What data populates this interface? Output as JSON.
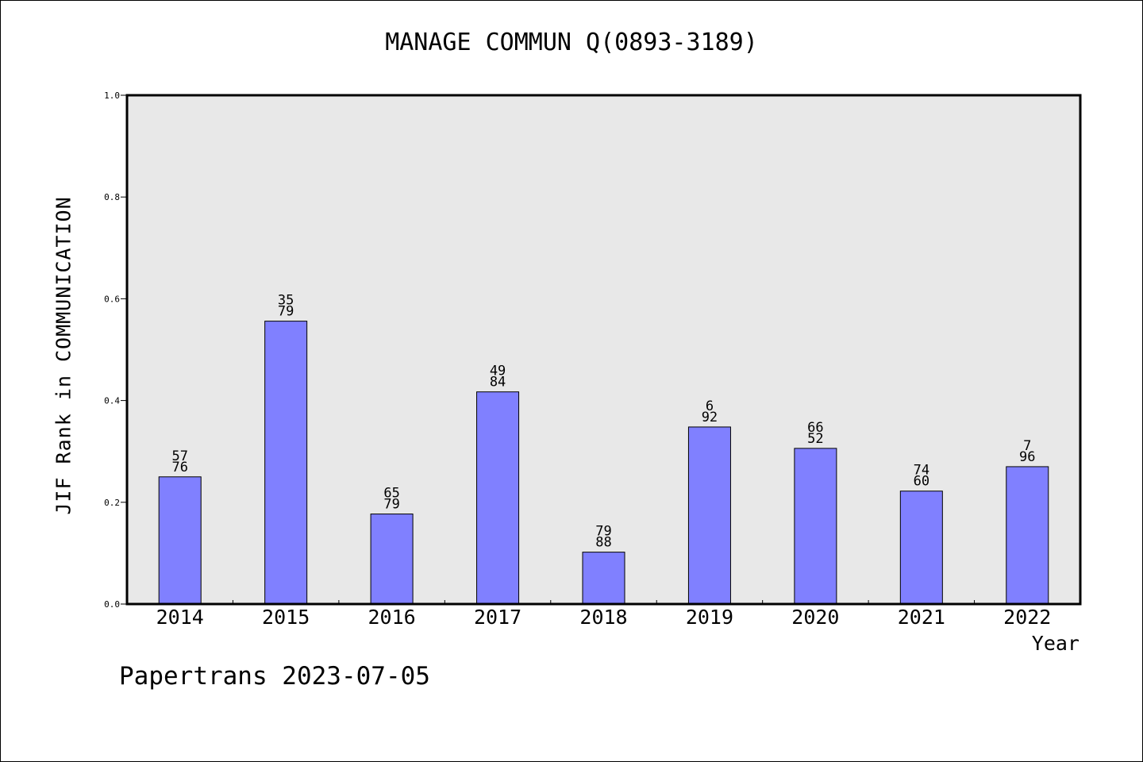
{
  "chart_data": {
    "type": "bar",
    "title": "MANAGE COMMUN Q(0893-3189)",
    "xlabel": "Year",
    "ylabel": "JIF Rank in COMMUNICATION",
    "categories": [
      "2014",
      "2015",
      "2016",
      "2017",
      "2018",
      "2019",
      "2020",
      "2021",
      "2022"
    ],
    "values": [
      0.25,
      0.556,
      0.177,
      0.417,
      0.102,
      0.348,
      0.306,
      0.222,
      0.27
    ],
    "annotations": [
      {
        "rank": "57",
        "total": "76"
      },
      {
        "rank": "35",
        "total": "79"
      },
      {
        "rank": "65",
        "total": "79"
      },
      {
        "rank": "49",
        "total": "84"
      },
      {
        "rank": "79",
        "total": "88"
      },
      {
        "rank": "6",
        "total": "92"
      },
      {
        "rank": "66",
        "total": "52"
      },
      {
        "rank": "74",
        "total": "60"
      },
      {
        "rank": "7",
        "total": "96"
      }
    ],
    "ylim": [
      0,
      1.0
    ],
    "yticks": [
      "0.0",
      "0.2",
      "0.4",
      "0.6",
      "0.8",
      "1.0"
    ],
    "grid": false,
    "colors": {
      "bar": "#8080ff",
      "plot_background": "#e8e8e8"
    }
  },
  "footer": "Papertrans 2023-07-05"
}
